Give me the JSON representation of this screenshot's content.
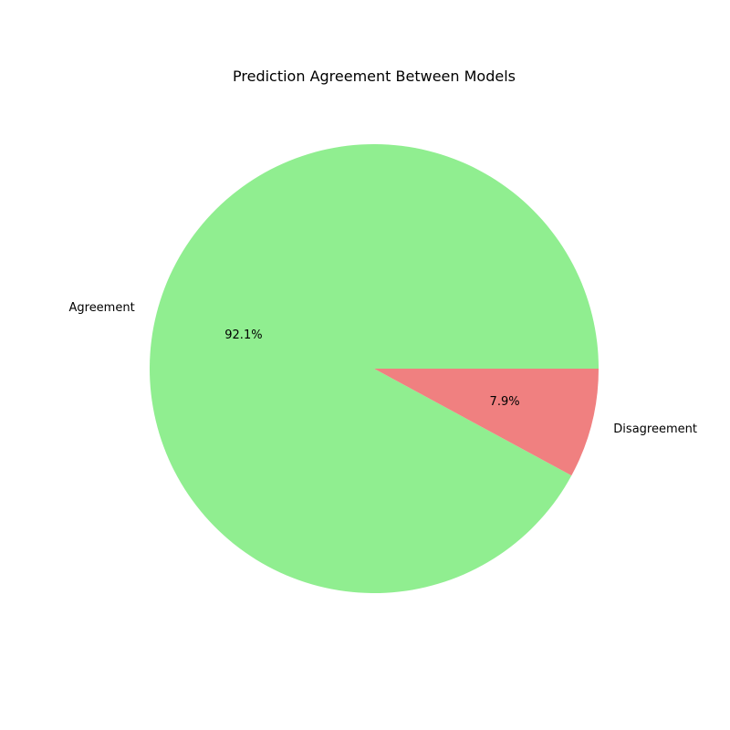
{
  "chart_data": {
    "type": "pie",
    "title": "Prediction Agreement Between Models",
    "slices": [
      {
        "label": "Agreement",
        "value": 92.1,
        "pct_label": "92.1%",
        "color": "#90ee90"
      },
      {
        "label": "Disagreement",
        "value": 7.9,
        "pct_label": "7.9%",
        "color": "#f08080"
      }
    ],
    "start_angle_deg": 0,
    "direction": "counterclockwise",
    "legend": "none"
  }
}
